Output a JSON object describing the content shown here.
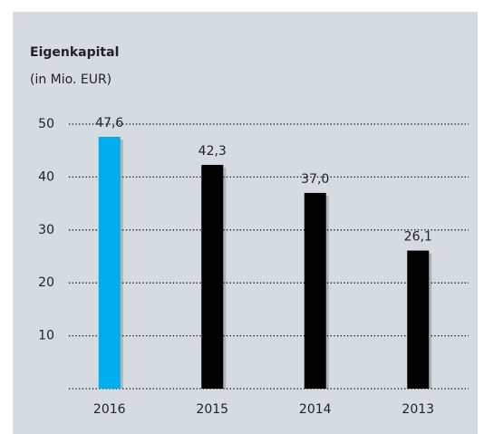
{
  "chart_data": {
    "type": "bar",
    "title": "Eigenkapital",
    "subtitle": "(in Mio. EUR)",
    "categories": [
      "2016",
      "2015",
      "2014",
      "2013"
    ],
    "values": [
      47.6,
      42.3,
      37.0,
      26.1
    ],
    "value_labels": [
      "47,6",
      "42,3",
      "37,0",
      "26,1"
    ],
    "colors": [
      "#00aeef",
      "#000000",
      "#000000",
      "#000000"
    ],
    "ylim": [
      0,
      50
    ],
    "yticks": [
      10,
      20,
      30,
      40,
      50
    ],
    "grid": true
  }
}
